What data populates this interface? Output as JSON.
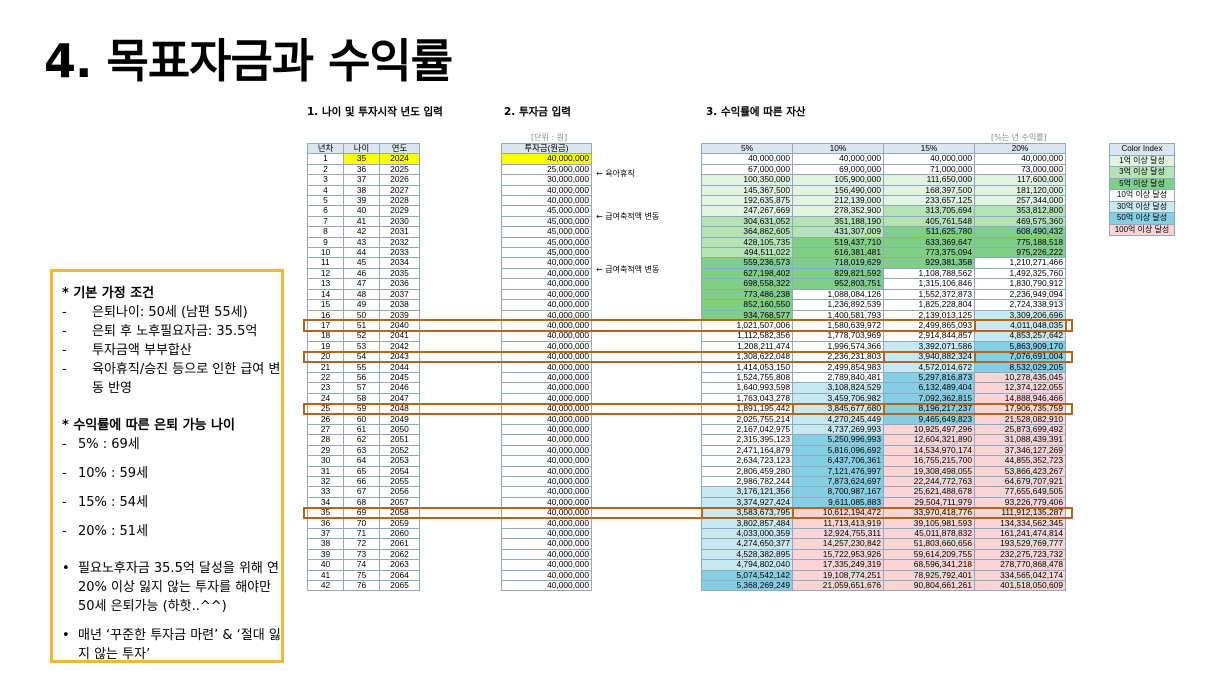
{
  "title": "4. 목표자금과 수익률",
  "section1": "1. 나이 및 투자시작 년도 입력",
  "section2": "2. 투자금 입력",
  "section3": "3. 수익률에 따른 자산",
  "unit_label": "[단위 : 원]",
  "rate_label": "[%는 년 수익률]",
  "headers": {
    "year_no": "년차",
    "age": "나이",
    "year": "연도",
    "investment": "투자금(원금)",
    "rates": [
      "5%",
      "10%",
      "15%",
      "20%"
    ]
  },
  "notes": [
    {
      "row": 2,
      "text": "← 육아휴직"
    },
    {
      "row": 6,
      "text": "← 급여축적액 변동"
    },
    {
      "row": 11,
      "text": "← 급여축적액 변동"
    }
  ],
  "legend": {
    "title": "Color Index",
    "items": [
      {
        "label": "1억 이상 달성",
        "color": "#e2f5e0"
      },
      {
        "label": "3억 이상 달성",
        "color": "#b5e3b3"
      },
      {
        "label": "5억 이상 달성",
        "color": "#7fcf86"
      },
      {
        "label": "10억 이상 달성",
        "color": "#ffffff"
      },
      {
        "label": "30억 이상 달성",
        "color": "#c9e9f2"
      },
      {
        "label": "50억 이상 달성",
        "color": "#86cfe3"
      },
      {
        "label": "100억 이상 달성",
        "color": "#fbd5d5"
      }
    ]
  },
  "rows": [
    [
      "1",
      "35",
      "2024",
      "40,000,000",
      "40,000,000",
      "40,000,000",
      "40,000,000",
      "40,000,000"
    ],
    [
      "2",
      "36",
      "2025",
      "25,000,000",
      "67,000,000",
      "69,000,000",
      "71,000,000",
      "73,000,000"
    ],
    [
      "3",
      "37",
      "2026",
      "30,000,000",
      "100,350,000",
      "105,900,000",
      "111,650,000",
      "117,600,000"
    ],
    [
      "4",
      "38",
      "2027",
      "40,000,000",
      "145,367,500",
      "156,490,000",
      "168,397,500",
      "181,120,000"
    ],
    [
      "5",
      "39",
      "2028",
      "40,000,000",
      "192,635,875",
      "212,139,000",
      "233,657,125",
      "257,344,000"
    ],
    [
      "6",
      "40",
      "2029",
      "45,000,000",
      "247,267,669",
      "278,352,900",
      "313,705,694",
      "353,812,800"
    ],
    [
      "7",
      "41",
      "2030",
      "45,000,000",
      "304,631,052",
      "351,188,190",
      "405,761,548",
      "469,575,360"
    ],
    [
      "8",
      "42",
      "2031",
      "45,000,000",
      "364,862,605",
      "431,307,009",
      "511,625,780",
      "608,490,432"
    ],
    [
      "9",
      "43",
      "2032",
      "45,000,000",
      "428,105,735",
      "519,437,710",
      "633,369,647",
      "775,188,518"
    ],
    [
      "10",
      "44",
      "2033",
      "45,000,000",
      "494,511,022",
      "616,381,481",
      "773,375,094",
      "975,226,222"
    ],
    [
      "11",
      "45",
      "2034",
      "40,000,000",
      "559,236,573",
      "718,019,629",
      "929,381,358",
      "1,210,271,466"
    ],
    [
      "12",
      "46",
      "2035",
      "40,000,000",
      "627,198,402",
      "829,821,592",
      "1,108,788,562",
      "1,492,325,760"
    ],
    [
      "13",
      "47",
      "2036",
      "40,000,000",
      "698,558,322",
      "952,803,751",
      "1,315,106,846",
      "1,830,790,912"
    ],
    [
      "14",
      "48",
      "2037",
      "40,000,000",
      "773,486,238",
      "1,088,084,126",
      "1,552,372,873",
      "2,236,949,094"
    ],
    [
      "15",
      "49",
      "2038",
      "40,000,000",
      "852,160,550",
      "1,236,892,539",
      "1,825,228,804",
      "2,724,338,913"
    ],
    [
      "16",
      "50",
      "2039",
      "40,000,000",
      "934,768,577",
      "1,400,581,793",
      "2,139,013,125",
      "3,309,206,696"
    ],
    [
      "17",
      "51",
      "2040",
      "40,000,000",
      "1,021,507,006",
      "1,580,639,972",
      "2,499,865,093",
      "4,011,048,035"
    ],
    [
      "18",
      "52",
      "2041",
      "40,000,000",
      "1,112,582,356",
      "1,778,703,969",
      "2,914,844,857",
      "4,853,257,642"
    ],
    [
      "19",
      "53",
      "2042",
      "40,000,000",
      "1,208,211,474",
      "1,996,574,366",
      "3,392,071,586",
      "5,863,909,170"
    ],
    [
      "20",
      "54",
      "2043",
      "40,000,000",
      "1,308,622,048",
      "2,236,231,803",
      "3,940,882,324",
      "7,076,691,004"
    ],
    [
      "21",
      "55",
      "2044",
      "40,000,000",
      "1,414,053,150",
      "2,499,854,983",
      "4,572,014,672",
      "8,532,029,205"
    ],
    [
      "22",
      "56",
      "2045",
      "40,000,000",
      "1,524,755,808",
      "2,789,840,481",
      "5,297,816,873",
      "10,278,435,045"
    ],
    [
      "23",
      "57",
      "2046",
      "40,000,000",
      "1,640,993,598",
      "3,108,824,529",
      "6,132,489,404",
      "12,374,122,055"
    ],
    [
      "24",
      "58",
      "2047",
      "40,000,000",
      "1,763,043,278",
      "3,459,706,982",
      "7,092,362,815",
      "14,888,946,466"
    ],
    [
      "25",
      "59",
      "2048",
      "40,000,000",
      "1,891,195,442",
      "3,845,677,680",
      "8,196,217,237",
      "17,906,735,759"
    ],
    [
      "26",
      "60",
      "2049",
      "40,000,000",
      "2,025,755,214",
      "4,270,245,449",
      "9,465,649,823",
      "21,528,082,910"
    ],
    [
      "27",
      "61",
      "2050",
      "40,000,000",
      "2,167,042,975",
      "4,737,269,993",
      "10,925,497,296",
      "25,873,699,492"
    ],
    [
      "28",
      "62",
      "2051",
      "40,000,000",
      "2,315,395,123",
      "5,250,996,993",
      "12,604,321,890",
      "31,088,439,391"
    ],
    [
      "29",
      "63",
      "2052",
      "40,000,000",
      "2,471,164,879",
      "5,816,096,692",
      "14,534,970,174",
      "37,346,127,269"
    ],
    [
      "30",
      "64",
      "2053",
      "40,000,000",
      "2,634,723,123",
      "6,437,706,361",
      "16,755,215,700",
      "44,855,352,723"
    ],
    [
      "31",
      "65",
      "2054",
      "40,000,000",
      "2,806,459,280",
      "7,121,476,997",
      "19,308,498,055",
      "53,866,423,267"
    ],
    [
      "32",
      "66",
      "2055",
      "40,000,000",
      "2,986,782,244",
      "7,873,624,697",
      "22,244,772,763",
      "64,679,707,921"
    ],
    [
      "33",
      "67",
      "2056",
      "40,000,000",
      "3,176,121,356",
      "8,700,987,167",
      "25,621,488,678",
      "77,655,649,505"
    ],
    [
      "34",
      "68",
      "2057",
      "40,000,000",
      "3,374,927,424",
      "9,611,085,883",
      "29,504,711,979",
      "93,226,779,406"
    ],
    [
      "35",
      "69",
      "2058",
      "40,000,000",
      "3,583,673,795",
      "10,612,194,472",
      "33,970,418,776",
      "111,912,135,287"
    ],
    [
      "36",
      "70",
      "2059",
      "40,000,000",
      "3,802,857,484",
      "11,713,413,919",
      "39,105,981,593",
      "134,334,562,345"
    ],
    [
      "37",
      "71",
      "2060",
      "40,000,000",
      "4,033,000,359",
      "12,924,755,311",
      "45,011,878,832",
      "161,241,474,814"
    ],
    [
      "38",
      "72",
      "2061",
      "40,000,000",
      "4,274,650,377",
      "14,257,230,842",
      "51,803,660,656",
      "193,529,769,777"
    ],
    [
      "39",
      "73",
      "2062",
      "40,000,000",
      "4,528,382,895",
      "15,722,953,926",
      "59,614,209,755",
      "232,275,723,732"
    ],
    [
      "40",
      "74",
      "2063",
      "40,000,000",
      "4,794,802,040",
      "17,335,249,319",
      "68,596,341,218",
      "278,770,868,478"
    ],
    [
      "41",
      "75",
      "2064",
      "40,000,000",
      "5,074,542,142",
      "19,108,774,251",
      "78,925,792,401",
      "334,565,042,174"
    ],
    [
      "42",
      "76",
      "2065",
      "40,000,000",
      "5,368,269,249",
      "21,059,651,676",
      "90,804,661,261",
      "401,518,050,609"
    ]
  ],
  "highlights": [
    {
      "row": 17,
      "col": 4
    },
    {
      "row": 20,
      "col": 3
    },
    {
      "row": 25,
      "col": 2
    },
    {
      "row": 35,
      "col": 1
    }
  ],
  "assumptions": {
    "heading": "* 기본 가정 조건",
    "items": [
      "은퇴나이: 50세 (남편 55세)",
      "은퇴 후 노후필요자금: 35.5억",
      "투자금액 부부합산",
      "육아휴직/승진 등으로 인한 급여 변동 반영"
    ],
    "retire_heading": "* 수익률에 따른 은퇴 가능 나이",
    "retire_items": [
      "5% : 69세",
      "10% : 59세",
      "15% : 54세",
      "20% : 51세"
    ],
    "bullets": [
      "필요노후자금 35.5억 달성을 위해 연 20% 이상 잃지 않는 투자를 해야만 50세 은퇴가능 (하핫..^^)",
      "매년 ‘꾸준한 투자금 마련’ & ‘절대 잃지 않는 투자’"
    ]
  }
}
